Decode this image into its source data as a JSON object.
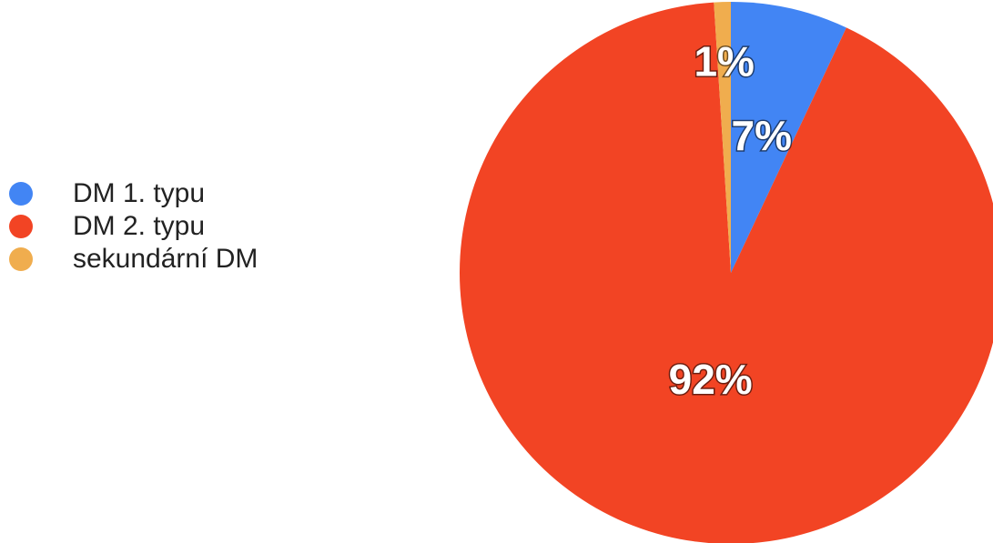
{
  "chart_data": {
    "type": "pie",
    "slices": [
      {
        "name": "DM 1. typu",
        "value": 7,
        "label": "7%",
        "color": "#4285f4"
      },
      {
        "name": "DM 2. typu",
        "value": 92,
        "label": "92%",
        "color": "#f24424"
      },
      {
        "name": "sekundární DM",
        "value": 1,
        "label": "1%",
        "color": "#f0ad4e"
      }
    ],
    "legend_position": "left"
  }
}
